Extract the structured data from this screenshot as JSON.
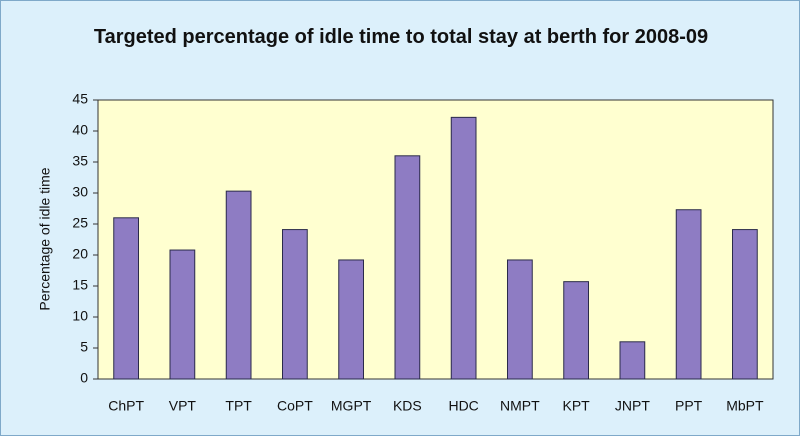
{
  "chart_data": {
    "type": "bar",
    "title": "Targeted percentage of idle time to total stay at berth for 2008-09",
    "y_label": "Percentage of idle time",
    "categories": [
      "ChPT",
      "VPT",
      "TPT",
      "CoPT",
      "MGPT",
      "KDS",
      "HDC",
      "NMPT",
      "KPT",
      "JNPT",
      "PPT",
      "MbPT"
    ],
    "values": [
      26,
      20.8,
      30.3,
      24.1,
      19.2,
      36,
      42.2,
      19.2,
      15.7,
      6,
      27.3,
      24.1
    ],
    "color": "#8e7cc3",
    "ylim": [
      0,
      45
    ],
    "yticks": [
      0,
      5,
      10,
      15,
      20,
      25,
      30,
      35,
      40,
      45
    ],
    "grid": false
  }
}
